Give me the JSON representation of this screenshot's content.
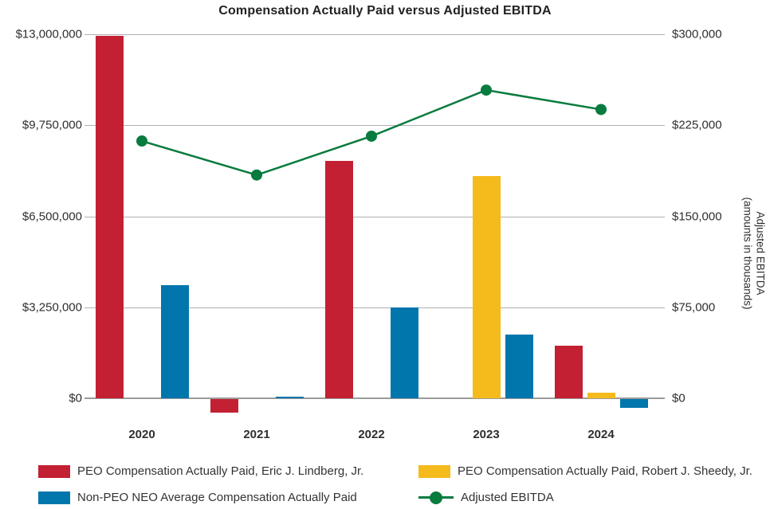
{
  "title": "Compensation Actually Paid versus Adjusted EBITDA",
  "chart_data": {
    "type": "bar+line combo",
    "categories": [
      "2020",
      "2021",
      "2022",
      "2023",
      "2024"
    ],
    "series": [
      {
        "name": "PEO Compensation Actually Paid, Eric J. Lindberg, Jr.",
        "type": "bar",
        "axis": "left",
        "color": "#C32033",
        "values": [
          12950000,
          -480000,
          8490000,
          null,
          1870000
        ]
      },
      {
        "name": "PEO Compensation Actually Paid, Robert J. Sheedy, Jr.",
        "type": "bar",
        "axis": "left",
        "color": "#F5BA1C",
        "values": [
          null,
          null,
          null,
          7950000,
          200000
        ]
      },
      {
        "name": "Non-PEO NEO Average Compensation Actually Paid",
        "type": "bar",
        "axis": "left",
        "color": "#0076AC",
        "values": [
          4050000,
          70000,
          3250000,
          2280000,
          -310000
        ]
      },
      {
        "name": "Adjusted EBITDA",
        "type": "line",
        "axis": "right",
        "color": "#087B3E",
        "values": [
          212000,
          184000,
          216000,
          254000,
          238000
        ]
      }
    ],
    "left_axis": {
      "max": 13000000,
      "ticks": [
        {
          "value": 0,
          "label": "$0"
        },
        {
          "value": 3250000,
          "label": "$3,250,000"
        },
        {
          "value": 6500000,
          "label": "$6,500,000"
        },
        {
          "value": 9750000,
          "label": "$9,750,000"
        },
        {
          "value": 13000000,
          "label": "$13,000,000"
        }
      ]
    },
    "right_axis": {
      "max": 300000,
      "title_line1": "Adjusted EBITDA",
      "title_line2": "(amounts in thousands)",
      "ticks": [
        {
          "value": 0,
          "label": "$0"
        },
        {
          "value": 75000,
          "label": "$75,000"
        },
        {
          "value": 150000,
          "label": "$150,000"
        },
        {
          "value": 225000,
          "label": "$225,000"
        },
        {
          "value": 300000,
          "label": "$300,000"
        }
      ]
    },
    "grid": "horizontal gridlines on",
    "legend_position": "bottom, two columns"
  }
}
